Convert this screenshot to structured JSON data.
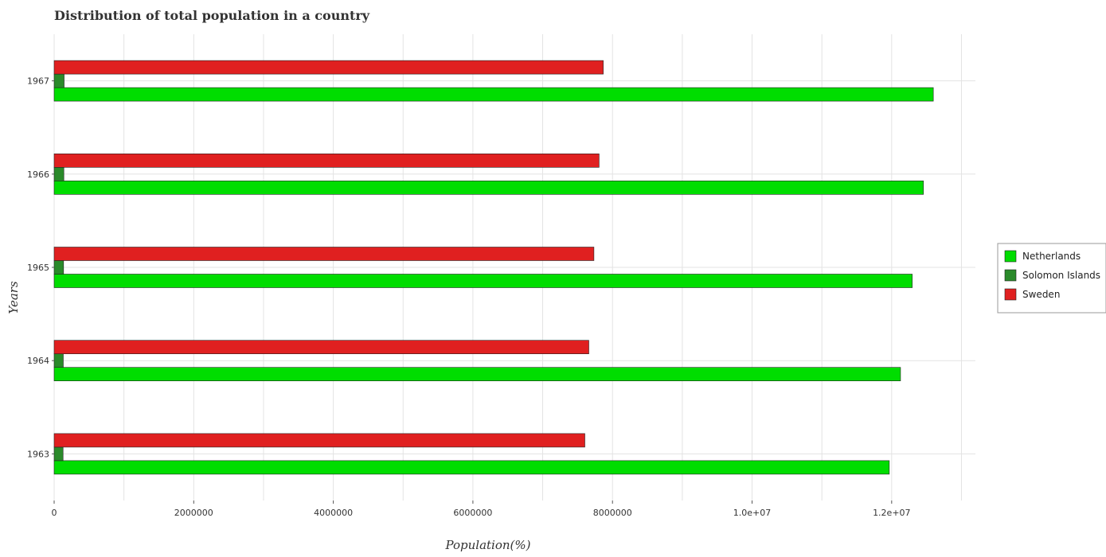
{
  "chart_data": {
    "type": "bar",
    "orientation": "horizontal",
    "title": "Distribution of total population in a country",
    "xlabel": "Population(%)",
    "ylabel": "Years",
    "categories": [
      "1963",
      "1964",
      "1965",
      "1966",
      "1967"
    ],
    "series": [
      {
        "name": "Netherlands",
        "color": "#00dd00",
        "values": [
          11966000,
          12127000,
          12295000,
          12455000,
          12597000
        ]
      },
      {
        "name": "Solomon Islands",
        "color": "#2a8a2a",
        "values": [
          128000,
          131000,
          135000,
          139000,
          143000
        ]
      },
      {
        "name": "Sweden",
        "color": "#e02020",
        "values": [
          7604000,
          7661000,
          7734000,
          7808000,
          7868000
        ]
      }
    ],
    "xlim": [
      0,
      13200000
    ],
    "xticks": [
      0,
      2000000,
      4000000,
      6000000,
      8000000,
      10000000,
      12000000
    ],
    "xtick_labels": [
      "0",
      "2000000",
      "4000000",
      "6000000",
      "8000000",
      "1.0e+07",
      "1.2e+07"
    ],
    "grid": true,
    "legend_position": "right"
  }
}
